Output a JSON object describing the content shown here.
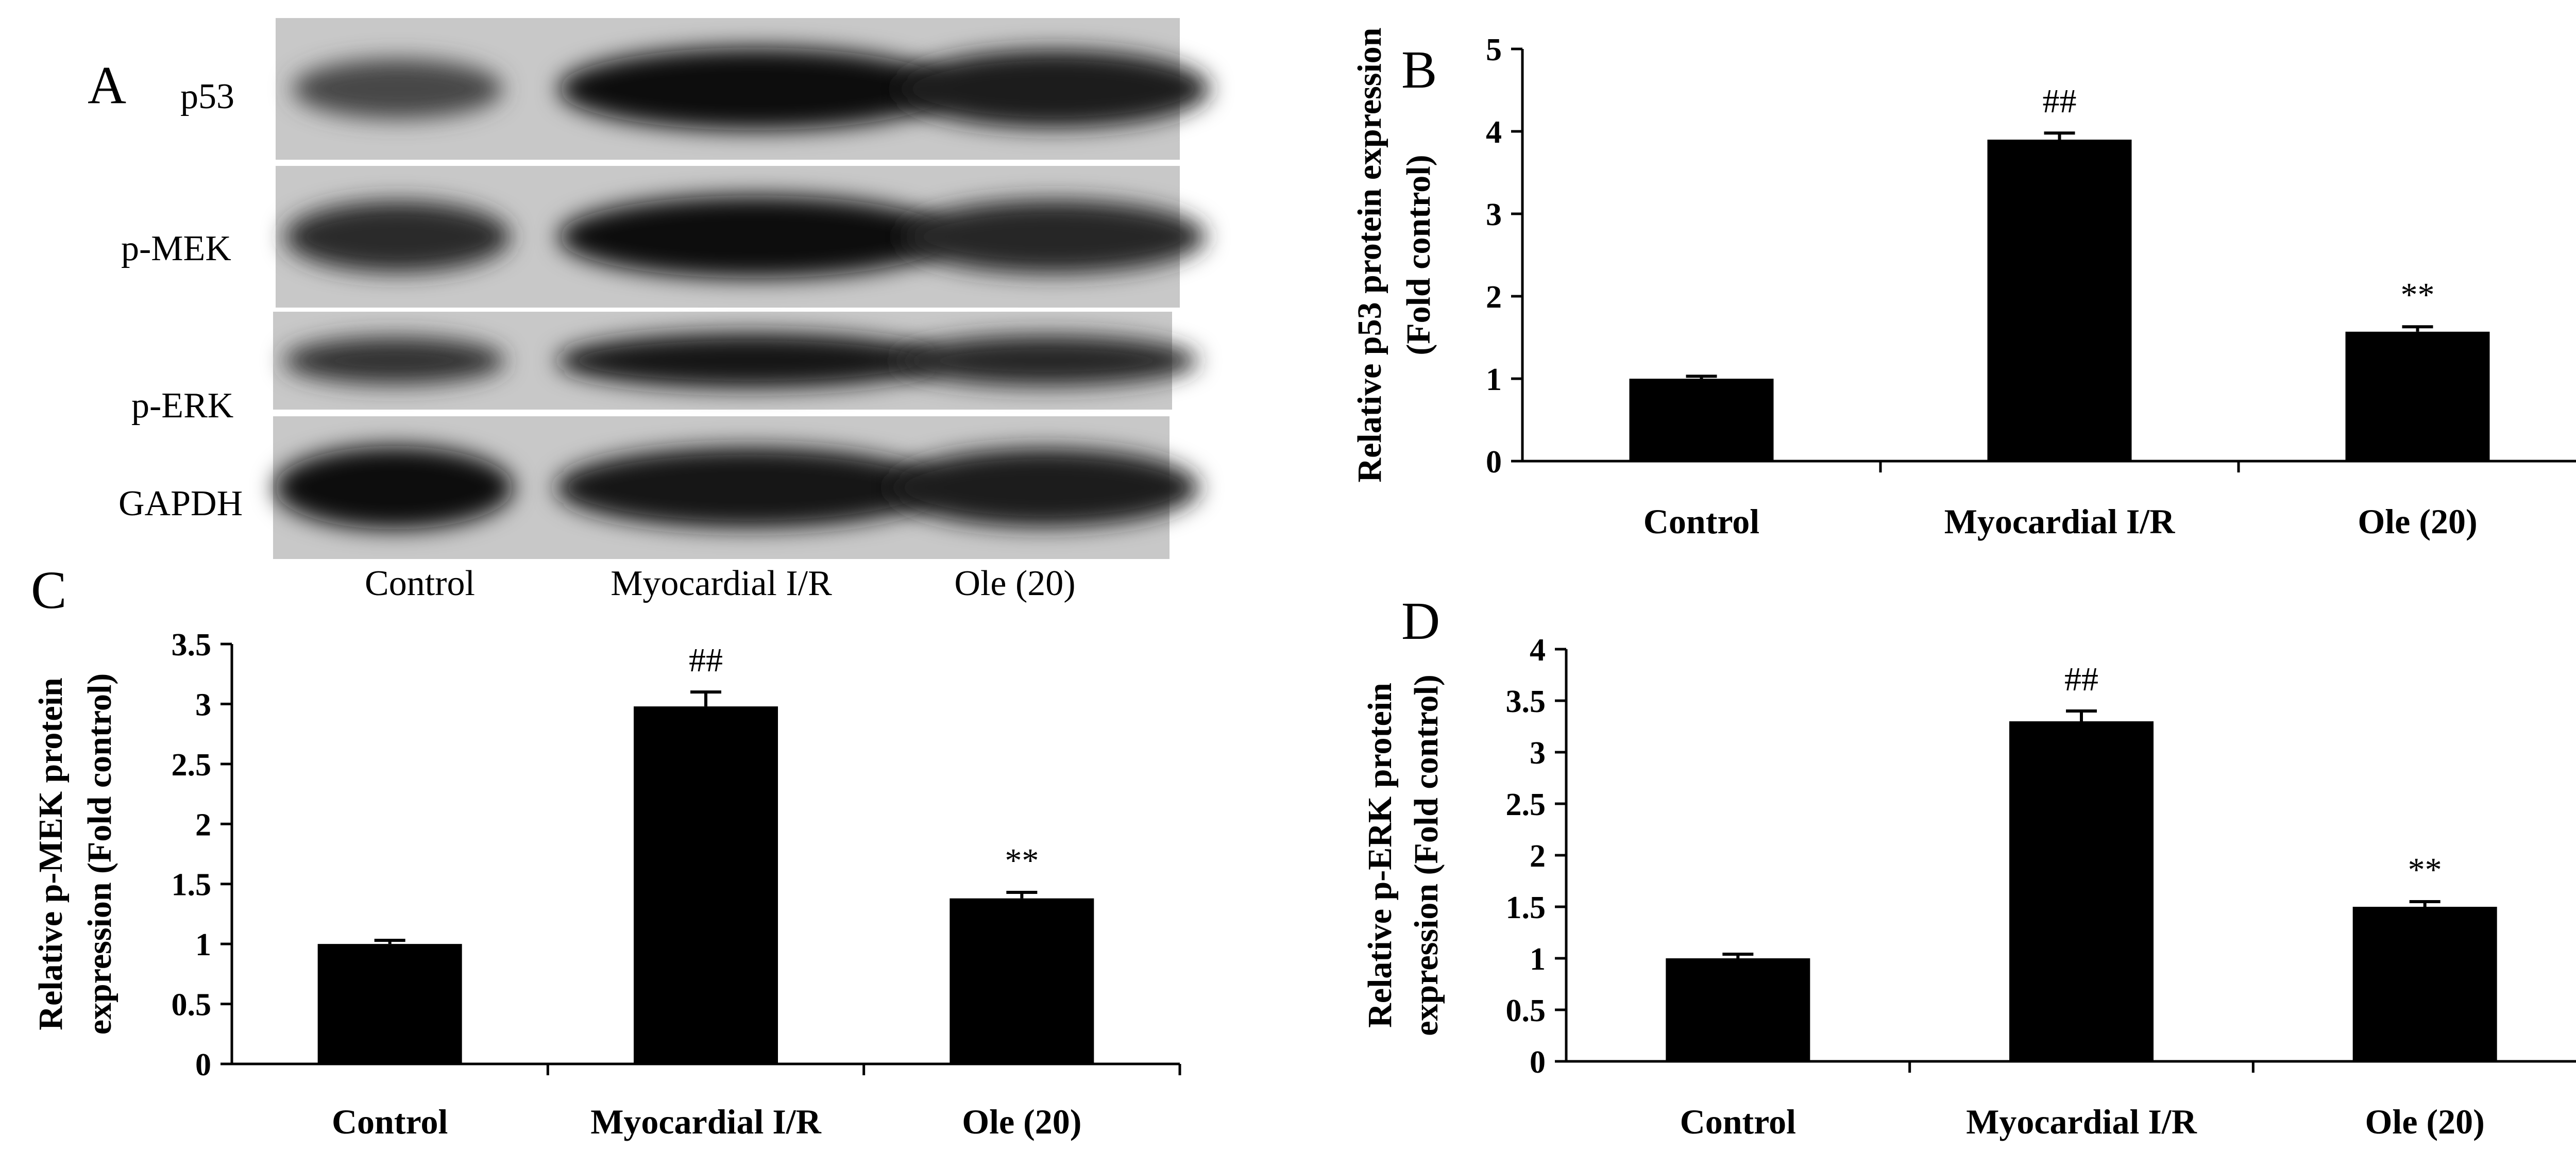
{
  "panel_a": {
    "letter": "A",
    "rows": [
      {
        "label": "p53",
        "bands": [
          0.45,
          0.95,
          0.85
        ]
      },
      {
        "label": "p-MEK",
        "bands": [
          0.7,
          0.95,
          0.75
        ]
      },
      {
        "label": "p-ERK",
        "bands": [
          0.65,
          0.9,
          0.75
        ]
      },
      {
        "label": "GAPDH",
        "bands": [
          0.95,
          0.9,
          0.85
        ]
      }
    ],
    "lanes": [
      "Control",
      "Myocardial I/R",
      "Ole (20)"
    ]
  },
  "chart_data": [
    {
      "panel": "B",
      "type": "bar",
      "categories": [
        "Control",
        "Myocardial I/R",
        "Ole (20)"
      ],
      "values": [
        1.0,
        3.9,
        1.57
      ],
      "errors": [
        0.03,
        0.08,
        0.06
      ],
      "annotations": [
        "",
        "##",
        "**"
      ],
      "ylabel_line1": "Relative p53 protein expression",
      "ylabel_line2": "(Fold control)",
      "ylim": [
        0,
        5
      ],
      "yticks": [
        "0",
        "1",
        "2",
        "3",
        "4",
        "5"
      ],
      "color": "#000000"
    },
    {
      "panel": "C",
      "type": "bar",
      "categories": [
        "Control",
        "Myocardial I/R",
        "Ole (20)"
      ],
      "values": [
        1.0,
        2.98,
        1.38
      ],
      "errors": [
        0.03,
        0.12,
        0.05
      ],
      "annotations": [
        "",
        "##",
        "**"
      ],
      "ylabel_line1": "Relative p-MEK  protein",
      "ylabel_line2": "expression  (Fold control)",
      "ylim": [
        0,
        3.5
      ],
      "yticks": [
        "0",
        "0.5",
        "1",
        "1.5",
        "2",
        "2.5",
        "3",
        "3.5"
      ],
      "color": "#000000"
    },
    {
      "panel": "D",
      "type": "bar",
      "categories": [
        "Control",
        "Myocardial I/R",
        "Ole (20)"
      ],
      "values": [
        1.0,
        3.3,
        1.5
      ],
      "errors": [
        0.04,
        0.1,
        0.05
      ],
      "annotations": [
        "",
        "##",
        "**"
      ],
      "ylabel_line1": "Relative p-ERK  protein",
      "ylabel_line2": "expression  (Fold control)",
      "ylim": [
        0,
        4
      ],
      "yticks": [
        "0",
        "0.5",
        "1",
        "1.5",
        "2",
        "2.5",
        "3",
        "3.5",
        "4"
      ],
      "color": "#000000"
    }
  ]
}
